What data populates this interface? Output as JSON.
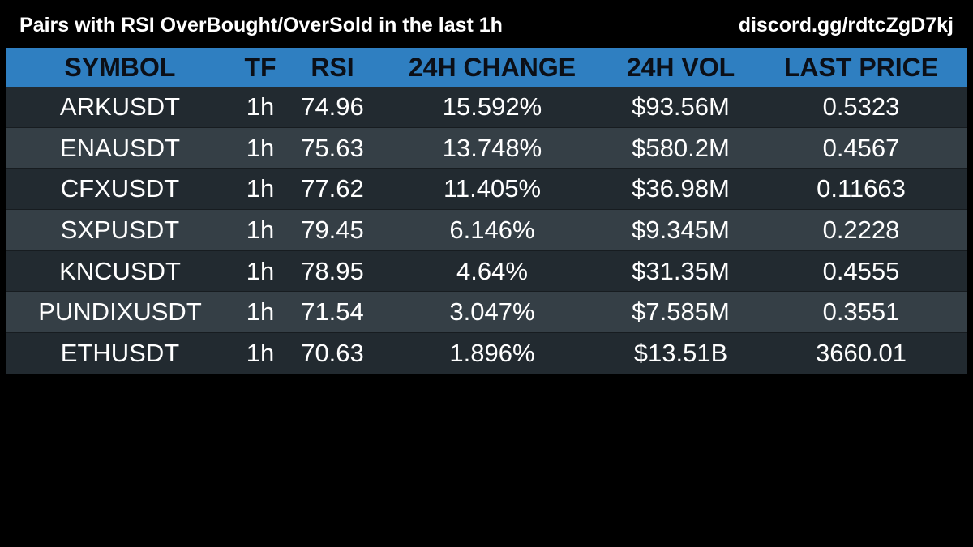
{
  "header": {
    "title": "Pairs with RSI OverBought/OverSold in the last 1h",
    "invite": "discord.gg/rdtcZgD7kj"
  },
  "table": {
    "columns": [
      "SYMBOL",
      "TF",
      "RSI",
      "24H CHANGE",
      "24H VOL",
      "LAST PRICE"
    ],
    "rows": [
      [
        "ARKUSDT",
        "1h",
        "74.96",
        "15.592%",
        "$93.56M",
        "0.5323"
      ],
      [
        "ENAUSDT",
        "1h",
        "75.63",
        "13.748%",
        "$580.2M",
        "0.4567"
      ],
      [
        "CFXUSDT",
        "1h",
        "77.62",
        "11.405%",
        "$36.98M",
        "0.11663"
      ],
      [
        "SXPUSDT",
        "1h",
        "79.45",
        "6.146%",
        "$9.345M",
        "0.2228"
      ],
      [
        "KNCUSDT",
        "1h",
        "78.95",
        "4.64%",
        "$31.35M",
        "0.4555"
      ],
      [
        "PUNDIXUSDT",
        "1h",
        "71.54",
        "3.047%",
        "$7.585M",
        "0.3551"
      ],
      [
        "ETHUSDT",
        "1h",
        "70.63",
        "1.896%",
        "$13.51B",
        "3660.01"
      ]
    ]
  },
  "colors": {
    "background": "#000000",
    "header_row": "#2f7fc1",
    "row_dark": "#222a30",
    "row_light": "#353f46",
    "text": "#ffffff",
    "header_text": "#0b0f17"
  }
}
